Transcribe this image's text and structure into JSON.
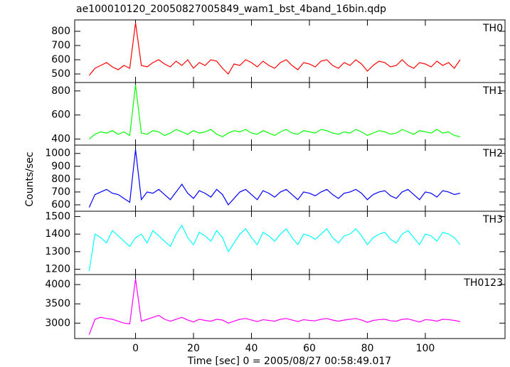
{
  "title": "ae100010120_20050827005849_wam1_bst_4band_16bin.qdp",
  "x_label": "Time [sec] 0 = 2005/08/27 00:58:49.017",
  "y_label": "Counts/sec",
  "xlim": [
    -21,
    127.5
  ],
  "xticks": [
    0,
    20,
    40,
    60,
    80,
    100
  ],
  "x": [
    -16,
    -14,
    -12,
    -10,
    -8,
    -6,
    -4,
    -2,
    0,
    2,
    4,
    6,
    8,
    10,
    12,
    14,
    16,
    18,
    20,
    22,
    24,
    26,
    28,
    30,
    32,
    34,
    36,
    38,
    40,
    42,
    44,
    46,
    48,
    50,
    52,
    54,
    56,
    58,
    60,
    62,
    64,
    66,
    68,
    70,
    72,
    74,
    76,
    78,
    80,
    82,
    84,
    86,
    88,
    90,
    92,
    94,
    96,
    98,
    100,
    102,
    104,
    106,
    108,
    110,
    112
  ],
  "chart_data": [
    {
      "type": "line",
      "name": "TH0",
      "color": "#ff0000",
      "ylim": [
        440,
        880
      ],
      "yticks": [
        500,
        600,
        700,
        800
      ],
      "values": [
        490,
        540,
        560,
        580,
        550,
        530,
        560,
        540,
        860,
        560,
        550,
        580,
        600,
        570,
        550,
        590,
        560,
        600,
        540,
        580,
        560,
        600,
        590,
        540,
        500,
        570,
        560,
        600,
        580,
        550,
        590,
        560,
        540,
        580,
        600,
        560,
        530,
        580,
        570,
        550,
        590,
        600,
        560,
        540,
        580,
        560,
        600,
        570,
        520,
        560,
        590,
        580,
        550,
        560,
        600,
        560,
        540,
        580,
        570,
        550,
        590,
        560,
        580,
        540,
        600
      ]
    },
    {
      "type": "line",
      "name": "TH1",
      "color": "#00ff00",
      "ylim": [
        350,
        870
      ],
      "yticks": [
        400,
        600,
        800
      ],
      "values": [
        400,
        440,
        460,
        450,
        470,
        440,
        460,
        430,
        850,
        450,
        440,
        470,
        460,
        430,
        450,
        480,
        460,
        440,
        470,
        450,
        460,
        480,
        440,
        420,
        450,
        470,
        460,
        480,
        450,
        440,
        470,
        450,
        430,
        460,
        480,
        450,
        440,
        470,
        460,
        450,
        480,
        470,
        450,
        440,
        460,
        450,
        480,
        460,
        430,
        450,
        470,
        460,
        440,
        450,
        480,
        460,
        440,
        470,
        460,
        450,
        480,
        450,
        460,
        430,
        420
      ]
    },
    {
      "type": "line",
      "name": "TH2",
      "color": "#0000ff",
      "ylim": [
        550,
        1065
      ],
      "yticks": [
        600,
        700,
        800,
        900,
        1000
      ],
      "values": [
        580,
        680,
        700,
        720,
        690,
        680,
        650,
        620,
        1030,
        640,
        700,
        690,
        720,
        680,
        640,
        700,
        760,
        690,
        650,
        710,
        690,
        660,
        720,
        680,
        600,
        650,
        700,
        720,
        680,
        640,
        710,
        690,
        660,
        700,
        720,
        680,
        640,
        700,
        690,
        670,
        700,
        720,
        680,
        650,
        690,
        700,
        720,
        690,
        640,
        680,
        700,
        710,
        670,
        650,
        700,
        720,
        680,
        640,
        700,
        690,
        660,
        710,
        700,
        680,
        690
      ]
    },
    {
      "type": "line",
      "name": "TH3",
      "color": "#00ffff",
      "ylim": [
        1170,
        1530
      ],
      "yticks": [
        1200,
        1300,
        1400,
        1500
      ],
      "values": [
        1190,
        1400,
        1380,
        1350,
        1420,
        1390,
        1360,
        1330,
        1380,
        1400,
        1350,
        1420,
        1390,
        1360,
        1330,
        1400,
        1450,
        1380,
        1340,
        1410,
        1390,
        1360,
        1420,
        1380,
        1300,
        1350,
        1400,
        1430,
        1380,
        1340,
        1410,
        1390,
        1360,
        1400,
        1430,
        1380,
        1340,
        1400,
        1390,
        1370,
        1400,
        1430,
        1380,
        1350,
        1390,
        1400,
        1430,
        1390,
        1340,
        1380,
        1400,
        1410,
        1370,
        1350,
        1400,
        1420,
        1380,
        1340,
        1400,
        1390,
        1360,
        1410,
        1400,
        1380,
        1340
      ]
    },
    {
      "type": "line",
      "name": "TH0123",
      "color": "#ff00ff",
      "ylim": [
        2600,
        4260
      ],
      "yticks": [
        3000,
        3500,
        4000
      ],
      "values": [
        2700,
        3100,
        3150,
        3120,
        3100,
        3050,
        3000,
        2980,
        4150,
        3050,
        3100,
        3150,
        3200,
        3100,
        3050,
        3100,
        3150,
        3080,
        3030,
        3100,
        3070,
        3050,
        3100,
        3080,
        3000,
        3050,
        3100,
        3120,
        3080,
        3040,
        3090,
        3070,
        3050,
        3100,
        3120,
        3080,
        3040,
        3090,
        3070,
        3060,
        3100,
        3120,
        3080,
        3050,
        3080,
        3100,
        3120,
        3080,
        3020,
        3070,
        3090,
        3100,
        3060,
        3050,
        3100,
        3110,
        3070,
        3030,
        3090,
        3080,
        3050,
        3100,
        3090,
        3070,
        3040
      ]
    }
  ]
}
